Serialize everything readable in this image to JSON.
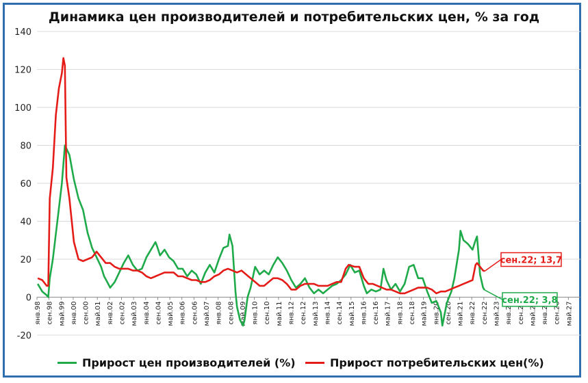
{
  "chart_data": {
    "type": "line",
    "title": "Динамика цен производителей и потребительских цен, % за год",
    "ylim": [
      -20,
      140
    ],
    "yticks": [
      -20,
      0,
      20,
      40,
      60,
      80,
      100,
      120,
      140
    ],
    "grid": "horizontal",
    "legend_position": "bottom",
    "x_start": "1998-01",
    "x_ticks": [
      "янв.98",
      "сен.98",
      "май.99",
      "янв.00",
      "сен.00",
      "май.01",
      "янв.02",
      "сен.02",
      "май.03",
      "янв.04",
      "сен.04",
      "май.05",
      "янв.06",
      "сен.06",
      "май.07",
      "янв.08",
      "сен.08",
      "май.09",
      "янв.10",
      "сен.10",
      "май.11",
      "янв.12",
      "сен.12",
      "май.13",
      "янв.14",
      "сен.14",
      "май.15",
      "янв.16",
      "сен.16",
      "май.17",
      "янв.18",
      "сен.18",
      "май.19",
      "янв.20",
      "сен.20",
      "май.21",
      "янв.22",
      "сен.22",
      "май.23",
      "янв.24",
      "сен.24",
      "май.25",
      "янв.26",
      "сен.26",
      "май.27"
    ],
    "series": [
      {
        "name": "Прирост цен производителей (%)",
        "color": "#1faa4a",
        "points": [
          [
            "1998-01",
            7
          ],
          [
            "1998-04",
            3
          ],
          [
            "1998-07",
            1
          ],
          [
            "1998-08",
            0
          ],
          [
            "1998-09",
            10
          ],
          [
            "1998-11",
            20
          ],
          [
            "1999-02",
            40
          ],
          [
            "1999-05",
            60
          ],
          [
            "1999-07",
            80
          ],
          [
            "1999-10",
            75
          ],
          [
            "2000-01",
            62
          ],
          [
            "2000-04",
            52
          ],
          [
            "2000-07",
            46
          ],
          [
            "2000-10",
            34
          ],
          [
            "2001-01",
            26
          ],
          [
            "2001-04",
            21
          ],
          [
            "2001-07",
            16
          ],
          [
            "2001-09",
            11
          ],
          [
            "2001-11",
            8
          ],
          [
            "2002-01",
            5
          ],
          [
            "2002-04",
            8
          ],
          [
            "2002-07",
            13
          ],
          [
            "2002-10",
            18
          ],
          [
            "2003-01",
            22
          ],
          [
            "2003-04",
            17
          ],
          [
            "2003-07",
            14
          ],
          [
            "2003-10",
            15
          ],
          [
            "2004-01",
            21
          ],
          [
            "2004-04",
            25
          ],
          [
            "2004-07",
            29
          ],
          [
            "2004-08",
            27
          ],
          [
            "2004-10",
            22
          ],
          [
            "2005-01",
            25
          ],
          [
            "2005-04",
            21
          ],
          [
            "2005-07",
            19
          ],
          [
            "2005-10",
            15
          ],
          [
            "2006-01",
            15
          ],
          [
            "2006-04",
            11
          ],
          [
            "2006-07",
            14
          ],
          [
            "2006-10",
            12
          ],
          [
            "2007-01",
            7
          ],
          [
            "2007-04",
            13
          ],
          [
            "2007-07",
            17
          ],
          [
            "2007-10",
            13
          ],
          [
            "2008-01",
            20
          ],
          [
            "2008-04",
            26
          ],
          [
            "2008-07",
            27
          ],
          [
            "2008-08",
            33
          ],
          [
            "2008-10",
            27
          ],
          [
            "2008-12",
            3
          ],
          [
            "2009-01",
            -5
          ],
          [
            "2009-03",
            -12
          ],
          [
            "2009-05",
            -15
          ],
          [
            "2009-06",
            -12
          ],
          [
            "2009-08",
            0
          ],
          [
            "2009-10",
            5
          ],
          [
            "2010-01",
            16
          ],
          [
            "2010-04",
            12
          ],
          [
            "2010-07",
            14
          ],
          [
            "2010-10",
            12
          ],
          [
            "2011-01",
            17
          ],
          [
            "2011-04",
            21
          ],
          [
            "2011-07",
            18
          ],
          [
            "2011-10",
            14
          ],
          [
            "2012-01",
            9
          ],
          [
            "2012-04",
            5
          ],
          [
            "2012-07",
            7
          ],
          [
            "2012-10",
            10
          ],
          [
            "2013-01",
            5
          ],
          [
            "2013-04",
            2
          ],
          [
            "2013-07",
            4
          ],
          [
            "2013-10",
            2
          ],
          [
            "2014-01",
            4
          ],
          [
            "2014-04",
            6
          ],
          [
            "2014-07",
            7
          ],
          [
            "2014-10",
            9
          ],
          [
            "2015-01",
            12
          ],
          [
            "2015-04",
            17
          ],
          [
            "2015-07",
            13
          ],
          [
            "2015-10",
            14
          ],
          [
            "2016-01",
            6
          ],
          [
            "2016-03",
            2
          ],
          [
            "2016-06",
            4
          ],
          [
            "2016-09",
            3
          ],
          [
            "2016-12",
            4
          ],
          [
            "2017-02",
            15
          ],
          [
            "2017-04",
            9
          ],
          [
            "2017-07",
            4
          ],
          [
            "2017-10",
            7
          ],
          [
            "2018-01",
            3
          ],
          [
            "2018-04",
            7
          ],
          [
            "2018-07",
            16
          ],
          [
            "2018-10",
            17
          ],
          [
            "2019-01",
            10
          ],
          [
            "2019-04",
            10
          ],
          [
            "2019-07",
            3
          ],
          [
            "2019-10",
            -3
          ],
          [
            "2020-01",
            -2
          ],
          [
            "2020-04",
            -8
          ],
          [
            "2020-05",
            -15
          ],
          [
            "2020-08",
            -3
          ],
          [
            "2020-11",
            3
          ],
          [
            "2021-01",
            10
          ],
          [
            "2021-04",
            25
          ],
          [
            "2021-05",
            35
          ],
          [
            "2021-07",
            30
          ],
          [
            "2021-10",
            28
          ],
          [
            "2022-01",
            25
          ],
          [
            "2022-03",
            30
          ],
          [
            "2022-04",
            32
          ],
          [
            "2022-06",
            12
          ],
          [
            "2022-08",
            5
          ],
          [
            "2022-09",
            3.8
          ]
        ],
        "annotation": {
          "label": "сен.22; 3,8",
          "x": "2022-09",
          "y": 3.8
        }
      },
      {
        "name": "Прирост потребительских цен(%)",
        "color": "#e41b17",
        "points": [
          [
            "1998-01",
            10
          ],
          [
            "1998-04",
            9
          ],
          [
            "1998-07",
            6
          ],
          [
            "1998-08",
            6
          ],
          [
            "1998-09",
            52
          ],
          [
            "1998-11",
            68
          ],
          [
            "1999-01",
            96
          ],
          [
            "1999-03",
            110
          ],
          [
            "1999-05",
            118
          ],
          [
            "1999-06",
            126
          ],
          [
            "1999-07",
            122
          ],
          [
            "1999-08",
            63
          ],
          [
            "1999-10",
            52
          ],
          [
            "2000-01",
            29
          ],
          [
            "2000-04",
            20
          ],
          [
            "2000-07",
            19
          ],
          [
            "2000-10",
            20
          ],
          [
            "2001-01",
            21
          ],
          [
            "2001-04",
            24
          ],
          [
            "2001-07",
            21
          ],
          [
            "2001-10",
            18
          ],
          [
            "2002-01",
            18
          ],
          [
            "2002-04",
            16
          ],
          [
            "2002-07",
            15
          ],
          [
            "2002-10",
            15
          ],
          [
            "2003-01",
            15
          ],
          [
            "2003-04",
            14
          ],
          [
            "2003-07",
            14
          ],
          [
            "2003-10",
            13
          ],
          [
            "2004-01",
            11
          ],
          [
            "2004-04",
            10
          ],
          [
            "2004-07",
            11
          ],
          [
            "2004-10",
            12
          ],
          [
            "2005-01",
            13
          ],
          [
            "2005-04",
            13
          ],
          [
            "2005-07",
            13
          ],
          [
            "2005-10",
            11
          ],
          [
            "2006-01",
            11
          ],
          [
            "2006-04",
            10
          ],
          [
            "2006-07",
            9
          ],
          [
            "2006-10",
            9
          ],
          [
            "2007-01",
            8
          ],
          [
            "2007-04",
            8
          ],
          [
            "2007-07",
            9
          ],
          [
            "2007-10",
            11
          ],
          [
            "2008-01",
            12
          ],
          [
            "2008-04",
            14
          ],
          [
            "2008-07",
            15
          ],
          [
            "2008-10",
            14
          ],
          [
            "2009-01",
            13
          ],
          [
            "2009-04",
            14
          ],
          [
            "2009-07",
            12
          ],
          [
            "2009-10",
            10
          ],
          [
            "2010-01",
            8
          ],
          [
            "2010-04",
            6
          ],
          [
            "2010-07",
            6
          ],
          [
            "2010-10",
            8
          ],
          [
            "2011-01",
            10
          ],
          [
            "2011-04",
            10
          ],
          [
            "2011-07",
            9
          ],
          [
            "2011-10",
            7
          ],
          [
            "2012-01",
            4
          ],
          [
            "2012-04",
            4
          ],
          [
            "2012-07",
            6
          ],
          [
            "2012-10",
            7
          ],
          [
            "2013-01",
            7
          ],
          [
            "2013-04",
            7
          ],
          [
            "2013-07",
            6
          ],
          [
            "2013-10",
            6
          ],
          [
            "2014-01",
            6
          ],
          [
            "2014-04",
            7
          ],
          [
            "2014-07",
            8
          ],
          [
            "2014-10",
            8
          ],
          [
            "2015-01",
            15
          ],
          [
            "2015-03",
            17
          ],
          [
            "2015-07",
            16
          ],
          [
            "2015-10",
            16
          ],
          [
            "2016-01",
            10
          ],
          [
            "2016-04",
            7
          ],
          [
            "2016-07",
            7
          ],
          [
            "2016-10",
            6
          ],
          [
            "2017-01",
            5
          ],
          [
            "2017-04",
            4
          ],
          [
            "2017-07",
            4
          ],
          [
            "2017-10",
            3
          ],
          [
            "2018-01",
            2
          ],
          [
            "2018-04",
            2
          ],
          [
            "2018-07",
            3
          ],
          [
            "2018-10",
            4
          ],
          [
            "2019-01",
            5
          ],
          [
            "2019-04",
            5
          ],
          [
            "2019-07",
            5
          ],
          [
            "2019-10",
            4
          ],
          [
            "2020-01",
            2
          ],
          [
            "2020-04",
            3
          ],
          [
            "2020-07",
            3
          ],
          [
            "2020-10",
            4
          ],
          [
            "2021-01",
            5
          ],
          [
            "2021-04",
            6
          ],
          [
            "2021-07",
            7
          ],
          [
            "2021-10",
            8
          ],
          [
            "2022-01",
            9
          ],
          [
            "2022-03",
            17
          ],
          [
            "2022-04",
            18
          ],
          [
            "2022-06",
            16
          ],
          [
            "2022-08",
            14
          ],
          [
            "2022-09",
            13.7
          ]
        ],
        "annotation": {
          "label": "сен.22; 13,7",
          "x": "2022-09",
          "y": 13.7
        }
      }
    ]
  }
}
